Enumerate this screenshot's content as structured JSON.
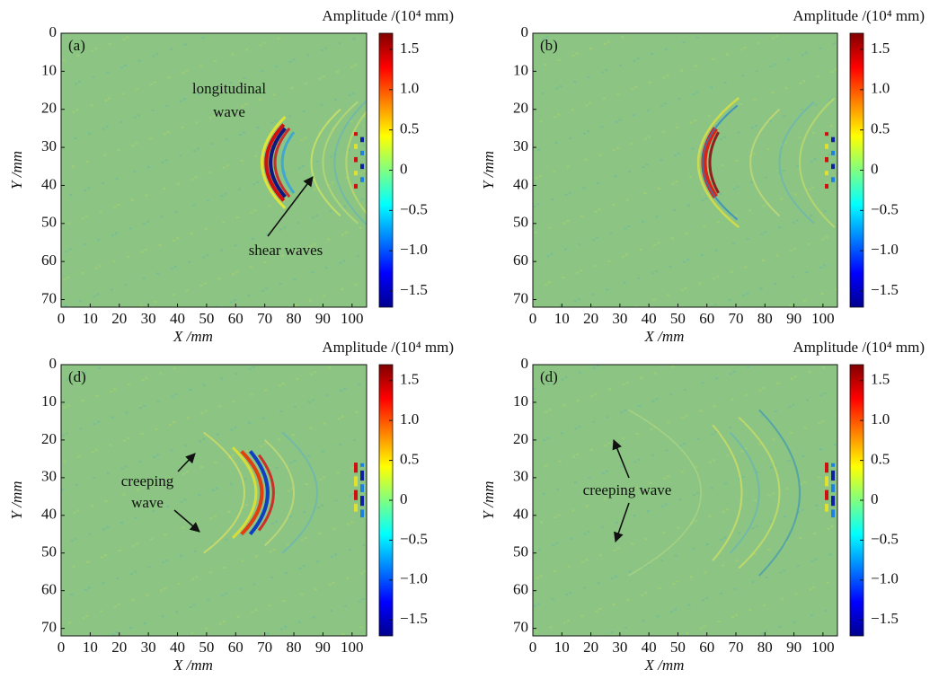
{
  "chart_data": [
    {
      "type": "heatmap",
      "label": "(a)",
      "xlabel": "X /mm",
      "ylabel": "Y /mm",
      "colorbar_label": "Amplitude /(10⁴ mm)",
      "xlim": [
        0,
        105
      ],
      "ylim": [
        0,
        72
      ],
      "y_inverted": true,
      "xticks": [
        0,
        10,
        20,
        30,
        40,
        50,
        60,
        70,
        80,
        90,
        100
      ],
      "yticks": [
        0,
        10,
        20,
        30,
        40,
        50,
        60,
        70
      ],
      "clim": [
        -1.7,
        1.7
      ],
      "cticks": [
        1.5,
        {
          "value": 1,
          "label": "1.0"
        },
        0.5,
        0,
        {
          "value": -0.5,
          "label": "−0.5"
        },
        {
          "value": -1,
          "label": "−1.0"
        },
        {
          "value": -1.5,
          "label": "−1.5"
        }
      ],
      "colormap": [
        "#00008f",
        "#0000ff",
        "#0080ff",
        "#00ffff",
        "#80ff80",
        "#ffff00",
        "#ff8000",
        "#ff0000",
        "#800000"
      ],
      "annotations": [
        "longitudinal",
        "wave",
        "shear waves"
      ]
    },
    {
      "type": "heatmap",
      "label": "(b)",
      "xlabel": "X /mm",
      "ylabel": "Y /mm",
      "colorbar_label": "Amplitude /(10⁴ mm)",
      "xlim": [
        0,
        105
      ],
      "ylim": [
        0,
        72
      ],
      "y_inverted": true,
      "xticks": [
        0,
        10,
        20,
        30,
        40,
        50,
        60,
        70,
        80,
        90,
        100
      ],
      "yticks": [
        0,
        10,
        20,
        30,
        40,
        50,
        60,
        70
      ],
      "clim": [
        -1.7,
        1.7
      ],
      "cticks": [
        1.5,
        {
          "value": 1,
          "label": "1.0"
        },
        0.5,
        0,
        {
          "value": -0.5,
          "label": "−0.5"
        },
        {
          "value": -1,
          "label": "−1.0"
        },
        {
          "value": -1.5,
          "label": "−1.5"
        }
      ],
      "colormap": [
        "#00008f",
        "#0000ff",
        "#0080ff",
        "#00ffff",
        "#80ff80",
        "#ffff00",
        "#ff8000",
        "#ff0000",
        "#800000"
      ],
      "annotations": []
    },
    {
      "type": "heatmap",
      "label": "(d)",
      "xlabel": "X /mm",
      "ylabel": "Y /mm",
      "colorbar_label": "Amplitude /(10⁴ mm)",
      "xlim": [
        0,
        105
      ],
      "ylim": [
        0,
        72
      ],
      "y_inverted": true,
      "xticks": [
        0,
        10,
        20,
        30,
        40,
        50,
        60,
        70,
        80,
        90,
        100
      ],
      "yticks": [
        0,
        10,
        20,
        30,
        40,
        50,
        60,
        70
      ],
      "clim": [
        -1.7,
        1.7
      ],
      "cticks": [
        1.5,
        {
          "value": 1,
          "label": "1.0"
        },
        0.5,
        0,
        {
          "value": -0.5,
          "label": "−0.5"
        },
        {
          "value": -1,
          "label": "−1.0"
        },
        {
          "value": -1.5,
          "label": "−1.5"
        }
      ],
      "colormap": [
        "#00008f",
        "#0000ff",
        "#0080ff",
        "#00ffff",
        "#80ff80",
        "#ffff00",
        "#ff8000",
        "#ff0000",
        "#800000"
      ],
      "annotations": [
        "creeping",
        "wave"
      ]
    },
    {
      "type": "heatmap",
      "label": "(d)",
      "xlabel": "X /mm",
      "ylabel": "Y /mm",
      "colorbar_label": "Amplitude /(10⁴ mm)",
      "xlim": [
        0,
        105
      ],
      "ylim": [
        0,
        72
      ],
      "y_inverted": true,
      "xticks": [
        0,
        10,
        20,
        30,
        40,
        50,
        60,
        70,
        80,
        90,
        100
      ],
      "yticks": [
        0,
        10,
        20,
        30,
        40,
        50,
        60,
        70
      ],
      "clim": [
        -1.7,
        1.7
      ],
      "cticks": [
        1.5,
        {
          "value": 1,
          "label": "1.0"
        },
        0.5,
        0,
        {
          "value": -0.5,
          "label": "−0.5"
        },
        {
          "value": -1,
          "label": "−1.0"
        },
        {
          "value": -1.5,
          "label": "−1.5"
        }
      ],
      "colormap": [
        "#00008f",
        "#0000ff",
        "#0080ff",
        "#00ffff",
        "#80ff80",
        "#ffff00",
        "#ff8000",
        "#ff0000",
        "#800000"
      ],
      "annotations": [
        "creeping wave"
      ]
    }
  ]
}
